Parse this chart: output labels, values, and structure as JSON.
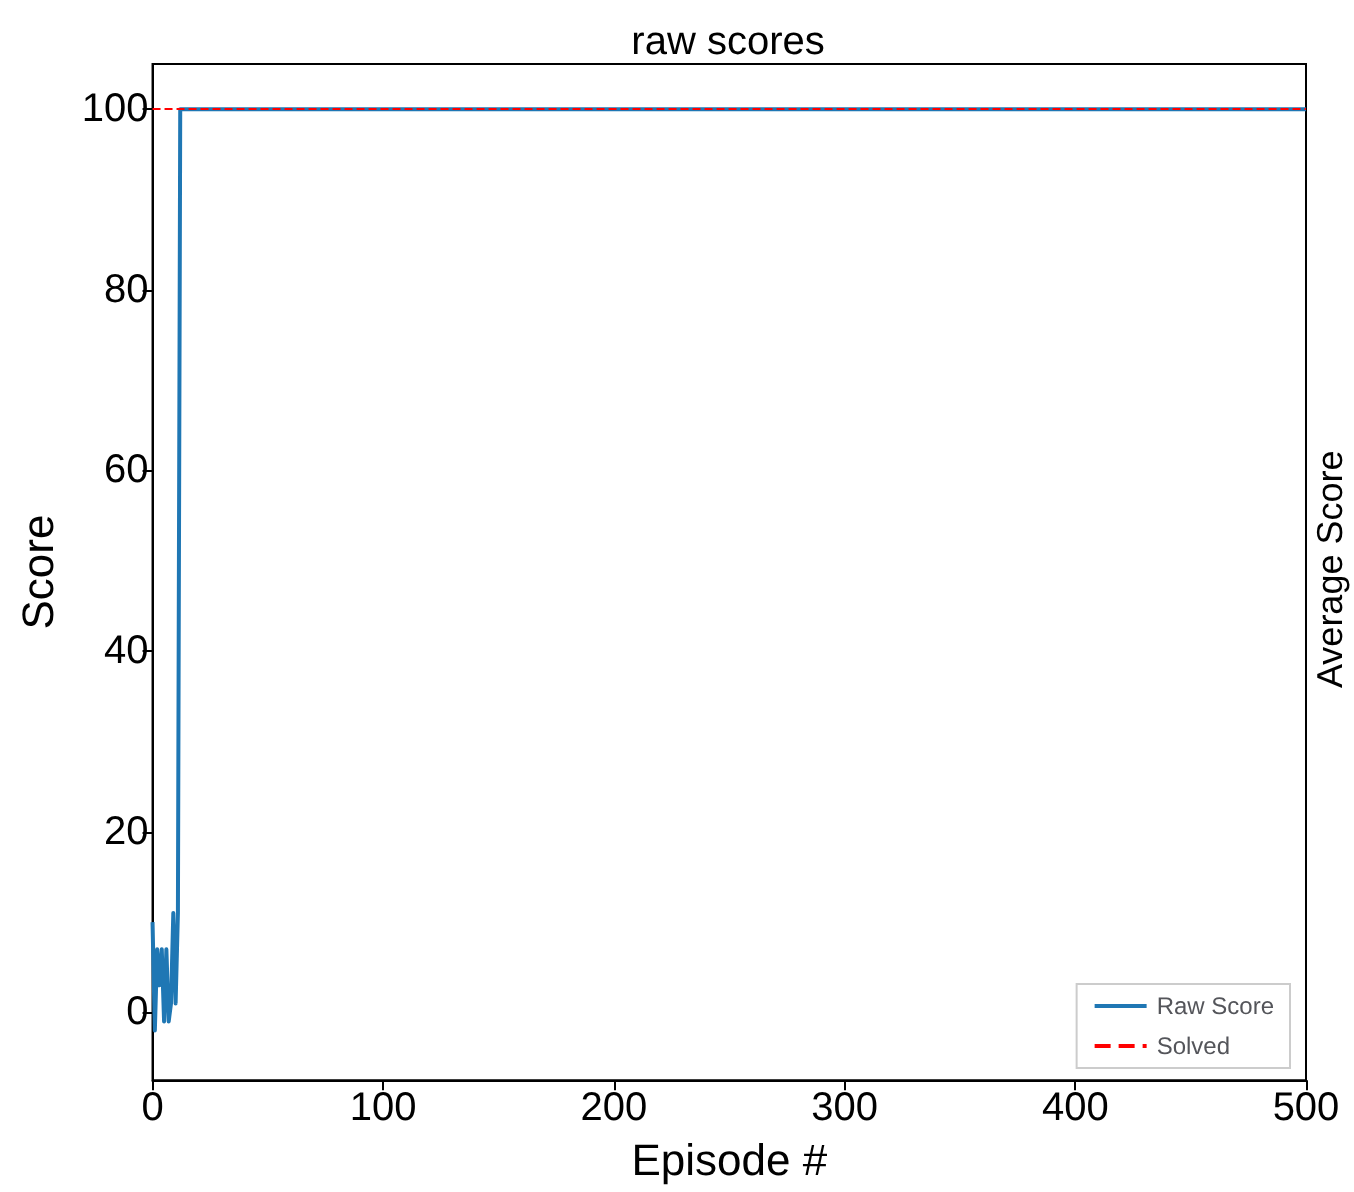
{
  "chart_data": {
    "type": "line",
    "title": "raw scores",
    "xlabel": "Episode #",
    "ylabel": "Score",
    "xlim": [
      0,
      500
    ],
    "xticks": [
      0,
      100,
      200,
      300,
      400,
      500
    ],
    "ylim": [
      -7.5,
      105
    ],
    "yticks": [
      0,
      20,
      40,
      60,
      80,
      100
    ],
    "series": [
      {
        "name": "Raw Score",
        "color": "#1f77b4",
        "x": [
          0,
          1,
          2,
          3,
          4,
          5,
          6,
          7,
          8,
          9,
          10,
          11,
          12,
          500
        ],
        "values": [
          10,
          -2,
          7,
          3,
          7,
          -1,
          7,
          -1,
          1,
          11,
          1,
          11,
          100,
          100
        ]
      }
    ],
    "ref_lines": [
      {
        "axis": "y",
        "value": 100,
        "label": "Solved",
        "color": "#ff0000",
        "line_style": "dashed"
      }
    ],
    "annotations": [
      "Average Score"
    ],
    "legend": "bottom right",
    "grid": false,
    "marker": "none",
    "line_style": "solid"
  }
}
